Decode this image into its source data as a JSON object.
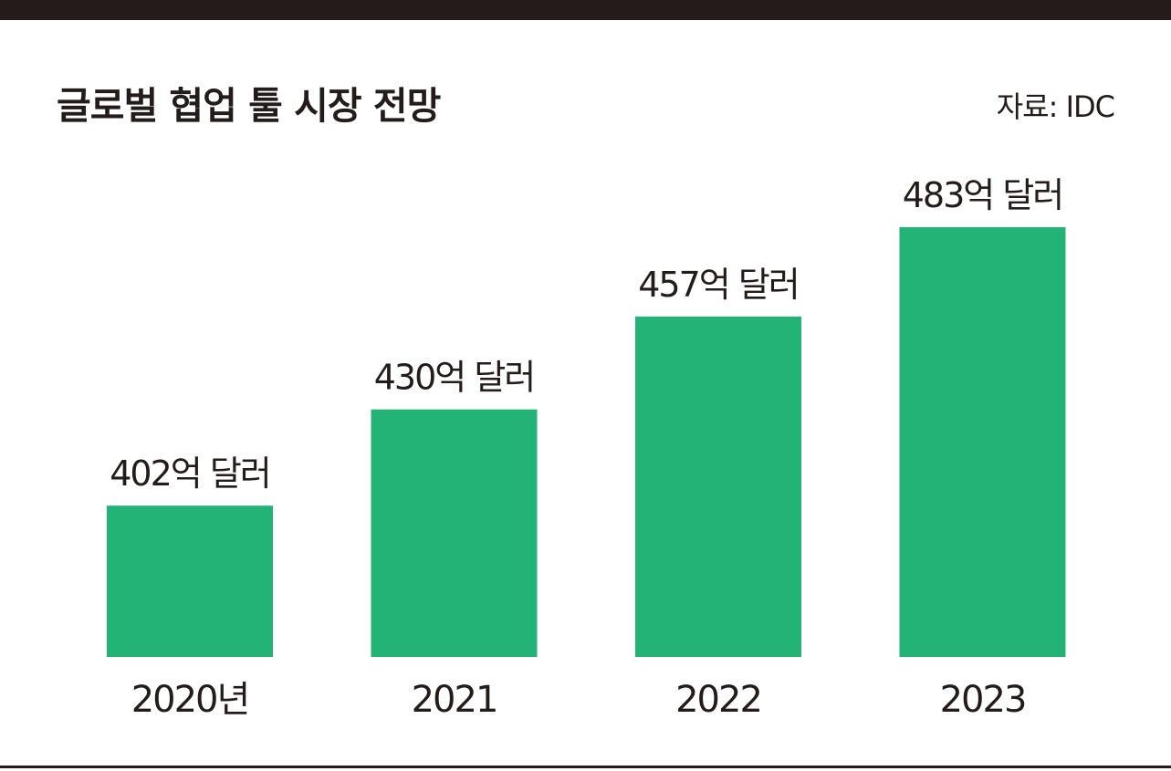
{
  "title": "글로벌 협업 툴 시장 전망",
  "source": "자료: IDC",
  "colors": {
    "bar": "#23b377",
    "text": "#231c1a",
    "frame": "#231c1a"
  },
  "chart_data": {
    "type": "bar",
    "title": "글로벌 협업 툴 시장 전망",
    "categories": [
      "2020년",
      "2021",
      "2022",
      "2023"
    ],
    "values": [
      402,
      430,
      457,
      483
    ],
    "data_labels": [
      "402억 달러",
      "430억 달러",
      "457억 달러",
      "483억 달러"
    ],
    "unit": "억 달러",
    "xlabel": "",
    "ylabel": "",
    "ylim": [
      358,
      483
    ],
    "grid": false,
    "legend": "none"
  }
}
